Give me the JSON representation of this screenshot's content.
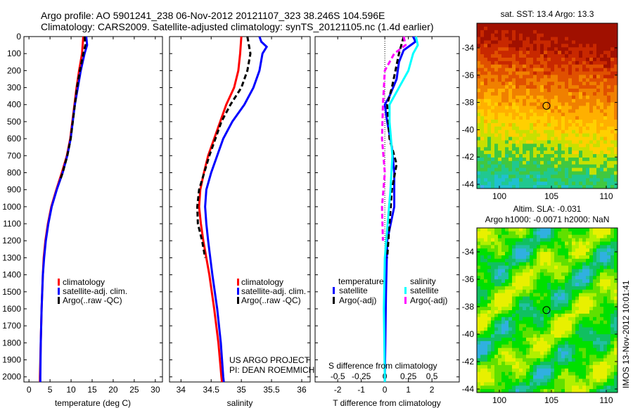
{
  "header": {
    "line1": "Argo profile: AO 5901241_238 06-Nov-2012 20121107_323 38.246S 104.596E",
    "line2": "Climatology: CARS2009. Satellite-adjusted climatology: synTS_20121105.nc (1.4d earlier)"
  },
  "colors": {
    "climatology": "#ff0000",
    "satellite": "#0000ff",
    "argo": "#000000",
    "s_satellite": "#00ffff",
    "s_argo": "#ff00ff"
  },
  "chart_data": [
    {
      "type": "line",
      "id": "temperature",
      "xlabel": "temperature (deg C)",
      "xlim": [
        -1.2,
        31.7
      ],
      "ylim": [
        0,
        2030
      ],
      "xticks": [
        "0",
        "5",
        "10",
        "15",
        "20",
        "25",
        "30"
      ],
      "yticks": [
        "0",
        "100",
        "200",
        "300",
        "400",
        "500",
        "600",
        "700",
        "800",
        "900",
        "1000",
        "1100",
        "1200",
        "1300",
        "1400",
        "1500",
        "1600",
        "1700",
        "1800",
        "1900",
        "2000"
      ],
      "legend": [
        "climatology",
        "satellite-adj. clim.",
        "Argo(..raw -QC)"
      ],
      "series": [
        {
          "name": "climatology",
          "color": "#ff0000",
          "depth": [
            0,
            100,
            200,
            300,
            400,
            500,
            600,
            700,
            800,
            900,
            1000,
            1100,
            1200,
            1300,
            1400,
            1600,
            1800,
            2000,
            2030
          ],
          "values": [
            12.9,
            12.6,
            11.9,
            11.3,
            10.8,
            10.3,
            9.8,
            9.0,
            7.8,
            6.5,
            5.3,
            4.5,
            3.9,
            3.5,
            3.3,
            3.0,
            2.8,
            2.6,
            2.6
          ]
        },
        {
          "name": "satellite-adj. clim.",
          "color": "#0000ff",
          "depth": [
            0,
            50,
            100,
            200,
            300,
            400,
            500,
            600,
            700,
            800,
            900,
            1000,
            1100,
            1200,
            1300,
            1400,
            1600,
            1800,
            2000,
            2030
          ],
          "values": [
            13.6,
            13.8,
            13.2,
            12.3,
            11.6,
            10.9,
            10.4,
            9.9,
            9.1,
            8.0,
            6.6,
            5.4,
            4.6,
            4.0,
            3.6,
            3.3,
            3.0,
            2.8,
            2.7,
            2.7
          ]
        },
        {
          "name": "Argo(..raw -QC)",
          "color": "#000000",
          "dashed": true,
          "depth": [
            0,
            50,
            100,
            200,
            300,
            400,
            500,
            600,
            700,
            800,
            850
          ],
          "values": [
            13.2,
            13.4,
            12.9,
            12.1,
            11.4,
            10.9,
            10.4,
            9.9,
            9.1,
            8.0,
            7.3
          ]
        }
      ]
    },
    {
      "type": "line",
      "id": "salinity",
      "xlabel": "salinity",
      "xlim": [
        33.81,
        36.14
      ],
      "ylim": [
        0,
        2030
      ],
      "xticks": [
        "34",
        "34.5",
        "35",
        "35.5",
        "36"
      ],
      "legend": [
        "climatology",
        "satellite-adj. clim.",
        "Argo(..raw -QC)"
      ],
      "series": [
        {
          "name": "climatology",
          "color": "#ff0000",
          "depth": [
            0,
            100,
            200,
            300,
            400,
            500,
            600,
            700,
            800,
            900,
            1000,
            1100,
            1200,
            1300,
            1400,
            1600,
            1800,
            2000,
            2030
          ],
          "values": [
            35.0,
            34.98,
            34.95,
            34.88,
            34.75,
            34.65,
            34.55,
            34.45,
            34.38,
            34.32,
            34.3,
            34.33,
            34.37,
            34.42,
            34.47,
            34.55,
            34.62,
            34.67,
            34.68
          ]
        },
        {
          "name": "satellite-adj. clim.",
          "color": "#0000ff",
          "depth": [
            0,
            30,
            60,
            100,
            200,
            300,
            400,
            500,
            600,
            700,
            800,
            900,
            1000,
            1100,
            1200,
            1400,
            1600,
            1800,
            2000,
            2030
          ],
          "values": [
            35.3,
            35.33,
            35.42,
            35.35,
            35.3,
            35.2,
            35.05,
            34.85,
            34.7,
            34.6,
            34.5,
            34.42,
            34.4,
            34.42,
            34.45,
            34.52,
            34.6,
            34.66,
            34.7,
            34.71
          ]
        },
        {
          "name": "Argo(..raw -QC)",
          "color": "#000000",
          "dashed": true,
          "depth": [
            0,
            100,
            200,
            300,
            400,
            500,
            700,
            900,
            1000,
            1100,
            1200,
            1300
          ],
          "values": [
            35.1,
            35.15,
            35.1,
            35.0,
            34.82,
            34.67,
            34.47,
            34.3,
            34.27,
            34.28,
            34.35,
            34.4
          ]
        }
      ]
    },
    {
      "type": "line",
      "id": "difference",
      "xlabel": "T difference from climatology",
      "xlabel_top": "S difference from climatology",
      "xlim": [
        -2.96,
        3.16
      ],
      "ylim": [
        0,
        2030
      ],
      "xticks": [
        "-2",
        "-1",
        "0",
        "1",
        "2"
      ],
      "xticks_s": [
        "-0.5",
        "-0.25",
        "0",
        "0.25",
        "0.5"
      ],
      "legend_t_title": "temperature",
      "legend_s_title": "salinity",
      "legend": [
        "satellite",
        "Argo(-adj)",
        "satellite",
        "Argo(-adj)"
      ],
      "s_scale": 4,
      "series": [
        {
          "name": "T satellite",
          "color": "#0000ff",
          "kind": "T",
          "depth": [
            0,
            30,
            80,
            150,
            250,
            350,
            400,
            500,
            650,
            800,
            1000,
            1200,
            1500,
            2000,
            2030
          ],
          "values": [
            1.2,
            1.3,
            0.8,
            0.6,
            0.5,
            0.2,
            0.0,
            0.1,
            0.3,
            0.4,
            0.4,
            0.1,
            0.05,
            0.0,
            0.0
          ]
        },
        {
          "name": "T Argo(-adj)",
          "color": "#000000",
          "dashed": true,
          "kind": "T",
          "depth": [
            0,
            100,
            300,
            400,
            600,
            750,
            900,
            1100,
            1300
          ],
          "values": [
            0.8,
            0.6,
            0.3,
            0.1,
            0.2,
            0.5,
            0.3,
            0.2,
            0.1
          ]
        },
        {
          "name": "S satellite",
          "color": "#00ffff",
          "kind": "S",
          "depth": [
            0,
            50,
            100,
            200,
            300,
            400,
            500,
            700,
            900,
            1100,
            1300,
            1600,
            2000,
            2030
          ],
          "values": [
            0.33,
            0.35,
            0.3,
            0.25,
            0.15,
            0.05,
            0.05,
            0.08,
            0.06,
            0.03,
            0.0,
            -0.01,
            0.0,
            0.0
          ]
        },
        {
          "name": "S Argo(-adj)",
          "color": "#ff00ff",
          "dashed": true,
          "kind": "S",
          "depth": [
            0,
            50,
            100,
            200,
            400,
            600,
            800,
            1000,
            1200
          ],
          "values": [
            0.2,
            0.22,
            0.1,
            0.0,
            -0.02,
            -0.03,
            0.0,
            -0.03,
            -0.02
          ]
        }
      ]
    }
  ],
  "credits": {
    "project": "US ARGO PROJECT",
    "pi": "PI: DEAN ROEMMICH"
  },
  "maps": {
    "sst_title": "sat. SST: 13.4 Argo: 13.3",
    "sla_title1": "Altim. SLA: -0.031",
    "sla_title2": "Argo h1000: -0.0071 h2000: NaN",
    "lat_ticks": [
      "-34",
      "-36",
      "-38",
      "-40",
      "-42",
      "-44"
    ],
    "lon_ticks": [
      "100",
      "105",
      "110"
    ],
    "timestamp": "IMOS 13-Nov-2012 10:01:41"
  }
}
